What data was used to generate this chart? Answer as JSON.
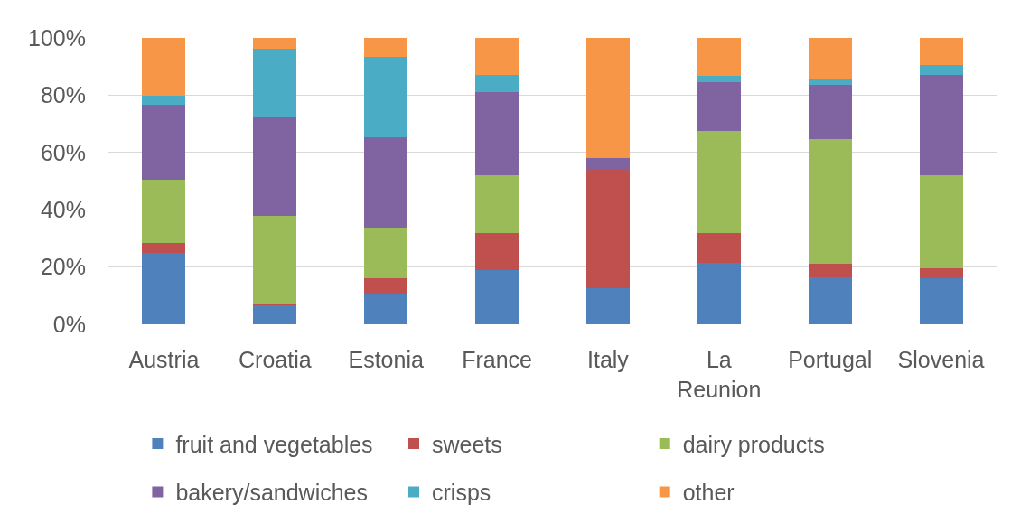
{
  "chart_data": {
    "type": "bar",
    "stacked": true,
    "categories": [
      "Austria",
      "Croatia",
      "Estonia",
      "France",
      "Italy",
      "La Reunion",
      "Portugal",
      "Slovenia"
    ],
    "series": [
      {
        "name": "fruit and vegetables",
        "color": "#4f81bd",
        "values": [
          25.0,
          6.9,
          10.8,
          18.8,
          12.7,
          21.6,
          16.4,
          16.0
        ]
      },
      {
        "name": "sweets",
        "color": "#c0504d",
        "values": [
          3.4,
          0.5,
          5.3,
          13.2,
          41.1,
          10.4,
          4.8,
          3.6
        ]
      },
      {
        "name": "dairy products",
        "color": "#9bbb59",
        "values": [
          22.2,
          30.5,
          17.8,
          19.9,
          0,
          35.5,
          43.5,
          32.3
        ]
      },
      {
        "name": "bakery/sandwiches",
        "color": "#8064a2",
        "values": [
          26.0,
          34.7,
          31.5,
          29.1,
          4.1,
          17.1,
          19.0,
          35.1
        ]
      },
      {
        "name": "crisps",
        "color": "#4bacc6",
        "values": [
          3.2,
          23.5,
          28.0,
          6.0,
          0,
          2.0,
          2.1,
          3.6
        ]
      },
      {
        "name": "other",
        "color": "#f79646",
        "values": [
          20.2,
          3.9,
          6.6,
          13.0,
          42.1,
          13.4,
          14.2,
          9.4
        ]
      }
    ],
    "ylim": [
      0,
      100
    ],
    "yticks": [
      {
        "value": 0,
        "label": "0%"
      },
      {
        "value": 20,
        "label": "20%"
      },
      {
        "value": 40,
        "label": "40%"
      },
      {
        "value": 60,
        "label": "60%"
      },
      {
        "value": 80,
        "label": "80%"
      },
      {
        "value": 100,
        "label": "100%"
      }
    ],
    "grid": "y",
    "legend": "bottom"
  }
}
